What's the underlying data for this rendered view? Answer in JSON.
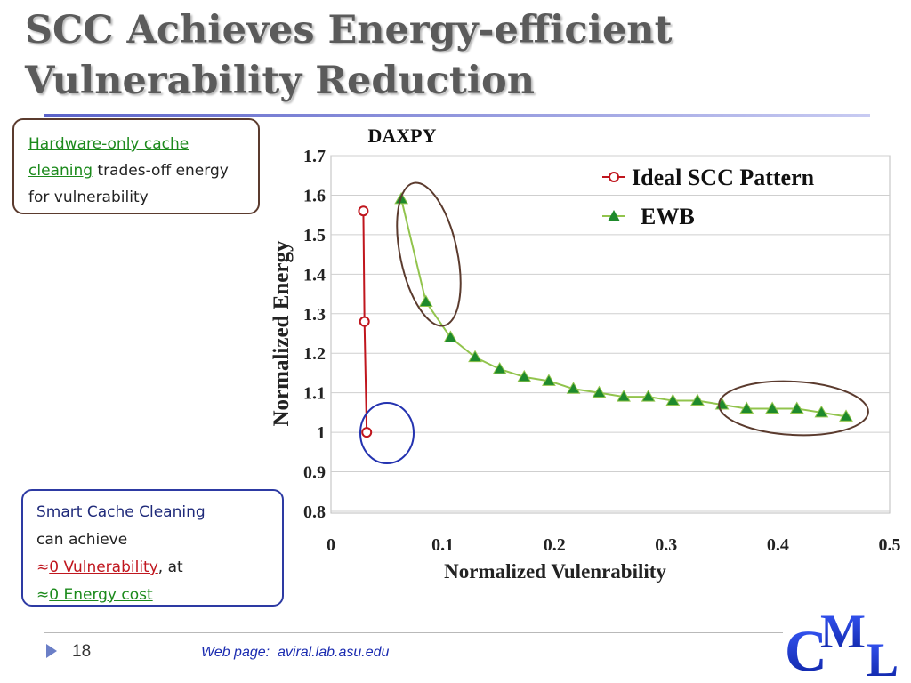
{
  "slide": {
    "title_line1": "SCC Achieves Energy-efficient",
    "title_line2": "Vulnerability Reduction",
    "page_number": "18",
    "footer_label": "Web page:",
    "footer_url": "aviral.lab.asu.edu",
    "logo_text": "CML"
  },
  "callout_top": {
    "highlight": "Hardware-only cache cleaning",
    "rest": " trades-off energy for vulnerability"
  },
  "callout_bottom": {
    "line1": "Smart Cache Cleaning",
    "line2": "can achieve",
    "line3_approx": "≈",
    "line3_highlight": "0 Vulnerability",
    "line3_rest": ", at",
    "line4_approx": "≈",
    "line4_highlight": "0 Energy cost"
  },
  "colors": {
    "ideal": "#c0161e",
    "ewb_marker": "#1e8a2c",
    "ewb_line": "#92c44d",
    "ellipse_brown": "#5b3b2e",
    "ellipse_blue": "#2433b0"
  },
  "chart_data": {
    "type": "scatter",
    "title": "DAXPY",
    "xlabel": "Normalized Vulenrability",
    "ylabel": "Normalized Energy",
    "xlim": [
      0,
      0.5
    ],
    "ylim": [
      0.8,
      1.7
    ],
    "xticks": [
      "0",
      "0.1",
      "0.2",
      "0.3",
      "0.4",
      "0.5"
    ],
    "yticks": [
      "0.8",
      "0.9",
      "1",
      "1.1",
      "1.2",
      "1.3",
      "1.4",
      "1.5",
      "1.6",
      "1.7"
    ],
    "grid": "horizontal",
    "legend_position": "top-right",
    "series": [
      {
        "name": "Ideal SCC Pattern",
        "marker": "open-circle",
        "x": [
          0.029,
          0.03,
          0.032
        ],
        "y": [
          1.56,
          1.28,
          1.0
        ]
      },
      {
        "name": "EWB",
        "marker": "triangle",
        "x": [
          0.063,
          0.085,
          0.107,
          0.129,
          0.151,
          0.173,
          0.195,
          0.217,
          0.24,
          0.262,
          0.284,
          0.306,
          0.328,
          0.35,
          0.372,
          0.395,
          0.417,
          0.439,
          0.461
        ],
        "y": [
          1.59,
          1.33,
          1.24,
          1.19,
          1.16,
          1.14,
          1.13,
          1.11,
          1.1,
          1.09,
          1.09,
          1.08,
          1.08,
          1.07,
          1.06,
          1.06,
          1.06,
          1.05,
          1.04
        ]
      }
    ]
  }
}
